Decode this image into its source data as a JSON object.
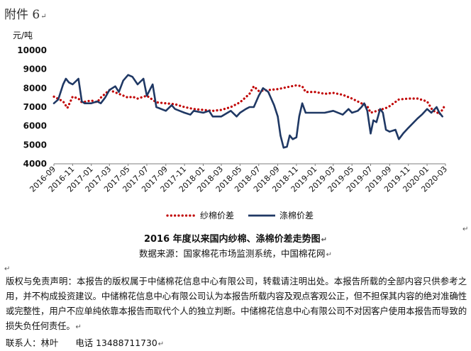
{
  "document": {
    "attachment_label": "附件 6",
    "caption": "2016 年度以来国内纱棉、涤棉价差走势图",
    "source": "数据来源：国家棉花市场监测系统，中国棉花网",
    "disclaimer": "版权与免责声明：本报告的版权属于中储棉花信息中心有限公司，转载请注明出处。本报告所载的全部内容只供参考之用，并不构成投资建议。中储棉花信息中心有限公司认为本报告所载内容及观点客观公正，但不担保其内容的绝对准确性或完整性，用户不应单纯依靠本报告而取代个人的独立判断。中储棉花信息中心有限公司不对因客户使用本报告而导致的损失负任何责任。",
    "contact_label": "联系人：林叶",
    "phone_label": "电话",
    "phone": "13488711730",
    "paragraph_mark": "↵"
  },
  "chart_data": {
    "type": "line",
    "title": "",
    "ylabel": "元/吨",
    "ylim": [
      4000,
      10000
    ],
    "yticks": [
      4000,
      5000,
      6000,
      7000,
      8000,
      9000,
      10000
    ],
    "xlim": [
      "2016-09",
      "2020-03"
    ],
    "xticks": [
      "2016-09",
      "2016-11",
      "2017-01",
      "2017-03",
      "2017-05",
      "2017-07",
      "2017-09",
      "2017-11",
      "2018-01",
      "2018-03",
      "2018-05",
      "2018-07",
      "2018-09",
      "2018-11",
      "2019-01",
      "2019-03",
      "2019-05",
      "2019-07",
      "2019-09",
      "2019-11",
      "2020-01",
      "2020-03"
    ],
    "grid": false,
    "legend_position": "bottom",
    "colors": {
      "yarn": "#c00000",
      "poly": "#1f3864"
    },
    "series": [
      {
        "name": "纱棉价差",
        "style": "dotted",
        "x": [
          "2016-09",
          "2016-10",
          "2016-10-15",
          "2016-11",
          "2016-11-20",
          "2016-12",
          "2017-01",
          "2017-01-20",
          "2017-02",
          "2017-03",
          "2017-04",
          "2017-05",
          "2017-05-15",
          "2017-06",
          "2017-07",
          "2017-08",
          "2017-09",
          "2017-10",
          "2017-11",
          "2017-12",
          "2018-01",
          "2018-02",
          "2018-03",
          "2018-04",
          "2018-05",
          "2018-06",
          "2018-06-15",
          "2018-07",
          "2018-08",
          "2018-09",
          "2018-10",
          "2018-11",
          "2018-11-20",
          "2018-12",
          "2019-01",
          "2019-02",
          "2019-03",
          "2019-04",
          "2019-05",
          "2019-06",
          "2019-06-20",
          "2019-07",
          "2019-08",
          "2019-08-20",
          "2019-09",
          "2019-10",
          "2019-11",
          "2019-12",
          "2020-01",
          "2020-01-20",
          "2020-02",
          "2020-02-10",
          "2020-02-25"
        ],
        "values": [
          7550,
          7300,
          6950,
          7550,
          7450,
          7250,
          7350,
          7250,
          7500,
          7900,
          7700,
          7500,
          7550,
          7450,
          7600,
          7250,
          7200,
          7150,
          7000,
          6900,
          6850,
          6800,
          6850,
          7000,
          7250,
          7700,
          8100,
          7850,
          7900,
          7950,
          8050,
          8150,
          8100,
          7800,
          7800,
          7700,
          7750,
          7650,
          7450,
          7200,
          7050,
          6700,
          6850,
          6950,
          7050,
          7400,
          7450,
          7450,
          7300,
          6800,
          6750,
          6600,
          7000
        ]
      },
      {
        "name": "涤棉价差",
        "style": "solid",
        "x": [
          "2016-09",
          "2016-09-15",
          "2016-10",
          "2016-10-10",
          "2016-10-20",
          "2016-11",
          "2016-11-20",
          "2016-12",
          "2016-12-10",
          "2017-01",
          "2017-01-20",
          "2017-02",
          "2017-02-15",
          "2017-03",
          "2017-03-20",
          "2017-04",
          "2017-04-15",
          "2017-05",
          "2017-05-15",
          "2017-06",
          "2017-06-20",
          "2017-07",
          "2017-07-20",
          "2017-08",
          "2017-09",
          "2017-09-20",
          "2017-10",
          "2017-11",
          "2017-11-20",
          "2017-12",
          "2018-01",
          "2018-01-20",
          "2018-02",
          "2018-03",
          "2018-04",
          "2018-04-20",
          "2018-05",
          "2018-05-20",
          "2018-06",
          "2018-06-15",
          "2018-07",
          "2018-07-15",
          "2018-08",
          "2018-08-20",
          "2018-09",
          "2018-09-10",
          "2018-09-20",
          "2018-10",
          "2018-10-10",
          "2018-10-20",
          "2018-11",
          "2018-11-10",
          "2018-11-20",
          "2018-12",
          "2019-01",
          "2019-02",
          "2019-03",
          "2019-04",
          "2019-04-20",
          "2019-05",
          "2019-05-20",
          "2019-06",
          "2019-06-10",
          "2019-06-20",
          "2019-07",
          "2019-07-10",
          "2019-07-20",
          "2019-08",
          "2019-08-10",
          "2019-08-20",
          "2019-09",
          "2019-09-20",
          "2019-10",
          "2019-10-15",
          "2019-11",
          "2019-12",
          "2019-12-15",
          "2020-01",
          "2020-01-15",
          "2020-02",
          "2020-02-10",
          "2020-02-20"
        ],
        "values": [
          7200,
          7400,
          8200,
          8500,
          8300,
          8200,
          8500,
          7300,
          7200,
          7200,
          7300,
          7200,
          7500,
          7900,
          8100,
          7800,
          8400,
          8700,
          8600,
          8200,
          8500,
          7600,
          8200,
          7000,
          6800,
          7100,
          6900,
          6700,
          6600,
          6800,
          6700,
          6800,
          6500,
          6500,
          6800,
          6500,
          6700,
          6900,
          7000,
          7000,
          7600,
          8000,
          7800,
          7100,
          6500,
          5500,
          4850,
          4900,
          5500,
          5300,
          5400,
          6500,
          7200,
          6700,
          6700,
          6700,
          6800,
          6600,
          6900,
          6700,
          6800,
          7000,
          7200,
          6800,
          5600,
          6300,
          6200,
          6900,
          6700,
          5800,
          5700,
          5800,
          5300,
          5600,
          5900,
          6400,
          6600,
          6900,
          6700,
          7000,
          6700,
          6500
        ]
      }
    ]
  }
}
